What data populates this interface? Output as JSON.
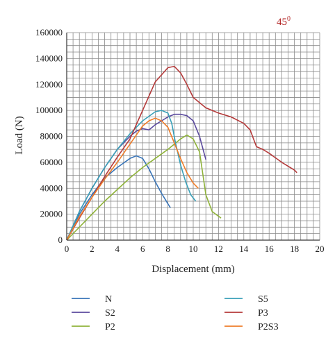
{
  "chart_data": {
    "type": "line",
    "annotation": {
      "base": "45",
      "superscript": "0",
      "color": "#b22222"
    },
    "xlabel": "Displacement (mm)",
    "ylabel": "Load (N)",
    "xlim": [
      0,
      20
    ],
    "ylim": [
      0,
      160000
    ],
    "x_ticks": [
      0,
      2,
      4,
      6,
      8,
      10,
      12,
      14,
      16,
      18,
      20
    ],
    "y_ticks": [
      0,
      20000,
      40000,
      60000,
      80000,
      100000,
      120000,
      140000,
      160000
    ],
    "x_tick_labels": [
      "0",
      "2",
      "4",
      "6",
      "8",
      "10",
      "12",
      "14",
      "16",
      "18",
      "20"
    ],
    "y_tick_labels": [
      "0",
      "20000",
      "40000",
      "60000",
      "80000",
      "100000",
      "120000",
      "140000",
      "160000"
    ],
    "grid": true,
    "legend_position": "bottom",
    "series": [
      {
        "name": "N",
        "color": "#3a75b8",
        "x": [
          0,
          1,
          2,
          3,
          4,
          5,
          5.5,
          6,
          6.5,
          7,
          7.5,
          8,
          8.2
        ],
        "y": [
          0,
          20000,
          35000,
          48000,
          56000,
          63000,
          65000,
          63000,
          55000,
          45000,
          36000,
          28000,
          25000
        ]
      },
      {
        "name": "S2",
        "color": "#5b4a9e",
        "x": [
          0,
          1,
          2,
          3,
          4,
          5,
          5.5,
          6,
          6.5,
          7,
          8,
          8.5,
          9,
          9.5,
          10,
          10.5,
          11
        ],
        "y": [
          0,
          22000,
          40000,
          56000,
          70000,
          80000,
          84000,
          86000,
          85000,
          89000,
          95000,
          97000,
          97000,
          96000,
          92000,
          80000,
          62000
        ]
      },
      {
        "name": "P2",
        "color": "#8fb33a",
        "x": [
          0,
          1,
          2,
          3,
          4,
          5,
          6,
          7,
          8,
          9,
          9.5,
          10,
          10.5,
          11,
          11.5,
          12.2
        ],
        "y": [
          0,
          10000,
          20000,
          30000,
          39000,
          48000,
          56000,
          63000,
          70000,
          78000,
          81000,
          78000,
          68000,
          35000,
          22000,
          17000
        ]
      },
      {
        "name": "S5",
        "color": "#3aa0b8",
        "x": [
          0,
          1,
          2,
          3,
          4,
          5,
          6,
          7,
          7.5,
          8,
          8.3,
          8.6,
          9,
          9.4,
          9.8,
          10.2
        ],
        "y": [
          0,
          22000,
          40000,
          56000,
          70000,
          82000,
          92000,
          99000,
          100000,
          98000,
          90000,
          75000,
          58000,
          45000,
          35000,
          30000
        ]
      },
      {
        "name": "P3",
        "color": "#b53a3a",
        "x": [
          0,
          1,
          2,
          3,
          4,
          5,
          6,
          7,
          8,
          8.5,
          9,
          9.5,
          10,
          11,
          12,
          13,
          14,
          14.5,
          15,
          15.5,
          16,
          17,
          18,
          18.2
        ],
        "y": [
          0,
          17000,
          33000,
          49000,
          64000,
          78000,
          100000,
          122000,
          133000,
          134000,
          129000,
          120000,
          110000,
          102000,
          98000,
          95000,
          90000,
          85000,
          72000,
          70000,
          67000,
          60000,
          54000,
          52000
        ]
      },
      {
        "name": "P2S3",
        "color": "#ee7d2a",
        "x": [
          0,
          1,
          2,
          3,
          4,
          5,
          6,
          6.5,
          7,
          7.5,
          8,
          8.5,
          9,
          9.5,
          10,
          10.4
        ],
        "y": [
          0,
          18000,
          33000,
          47000,
          60000,
          74000,
          88000,
          92000,
          94000,
          92000,
          87000,
          75000,
          63000,
          52000,
          44000,
          40000
        ]
      }
    ]
  }
}
